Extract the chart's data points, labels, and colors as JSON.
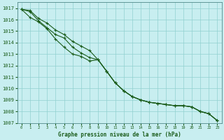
{
  "xlabel": "Graphe pression niveau de la mer (hPa)",
  "background_color": "#c8eef0",
  "grid_color": "#90d0d0",
  "line_color": "#1a5c1a",
  "hours": [
    0,
    1,
    2,
    3,
    4,
    5,
    6,
    7,
    8,
    9,
    10,
    11,
    12,
    13,
    14,
    15,
    16,
    17,
    18,
    19,
    20,
    21,
    22,
    23
  ],
  "line1": [
    1016.9,
    1016.8,
    1016.1,
    1015.7,
    1015.1,
    1014.7,
    1014.1,
    1013.7,
    1013.3,
    1012.5,
    1011.5,
    1010.5,
    1009.8,
    1009.3,
    1009.0,
    1008.8,
    1008.7,
    1008.6,
    1008.5,
    1008.5,
    1008.4,
    1008.0,
    1007.8,
    1007.2
  ],
  "line2": [
    1016.9,
    1016.7,
    1015.9,
    1015.3,
    1014.7,
    1014.4,
    1013.6,
    1013.1,
    1012.7,
    1012.5,
    1011.5,
    1010.5,
    1009.8,
    1009.3,
    1009.0,
    1008.8,
    1008.7,
    1008.6,
    1008.5,
    1008.5,
    1008.4,
    1008.0,
    1007.8,
    1007.2
  ],
  "line3": [
    1016.9,
    1016.2,
    1015.8,
    1015.2,
    1014.3,
    1013.6,
    1013.0,
    1012.8,
    1012.4,
    1012.5,
    1011.5,
    1010.5,
    1009.8,
    1009.3,
    1009.0,
    1008.8,
    1008.7,
    1008.6,
    1008.5,
    1008.5,
    1008.4,
    1008.0,
    1007.8,
    1007.2
  ],
  "ylim": [
    1007.0,
    1017.5
  ],
  "yticks": [
    1007,
    1008,
    1009,
    1010,
    1011,
    1012,
    1013,
    1014,
    1015,
    1016,
    1017
  ],
  "xlim": [
    -0.5,
    23.5
  ]
}
